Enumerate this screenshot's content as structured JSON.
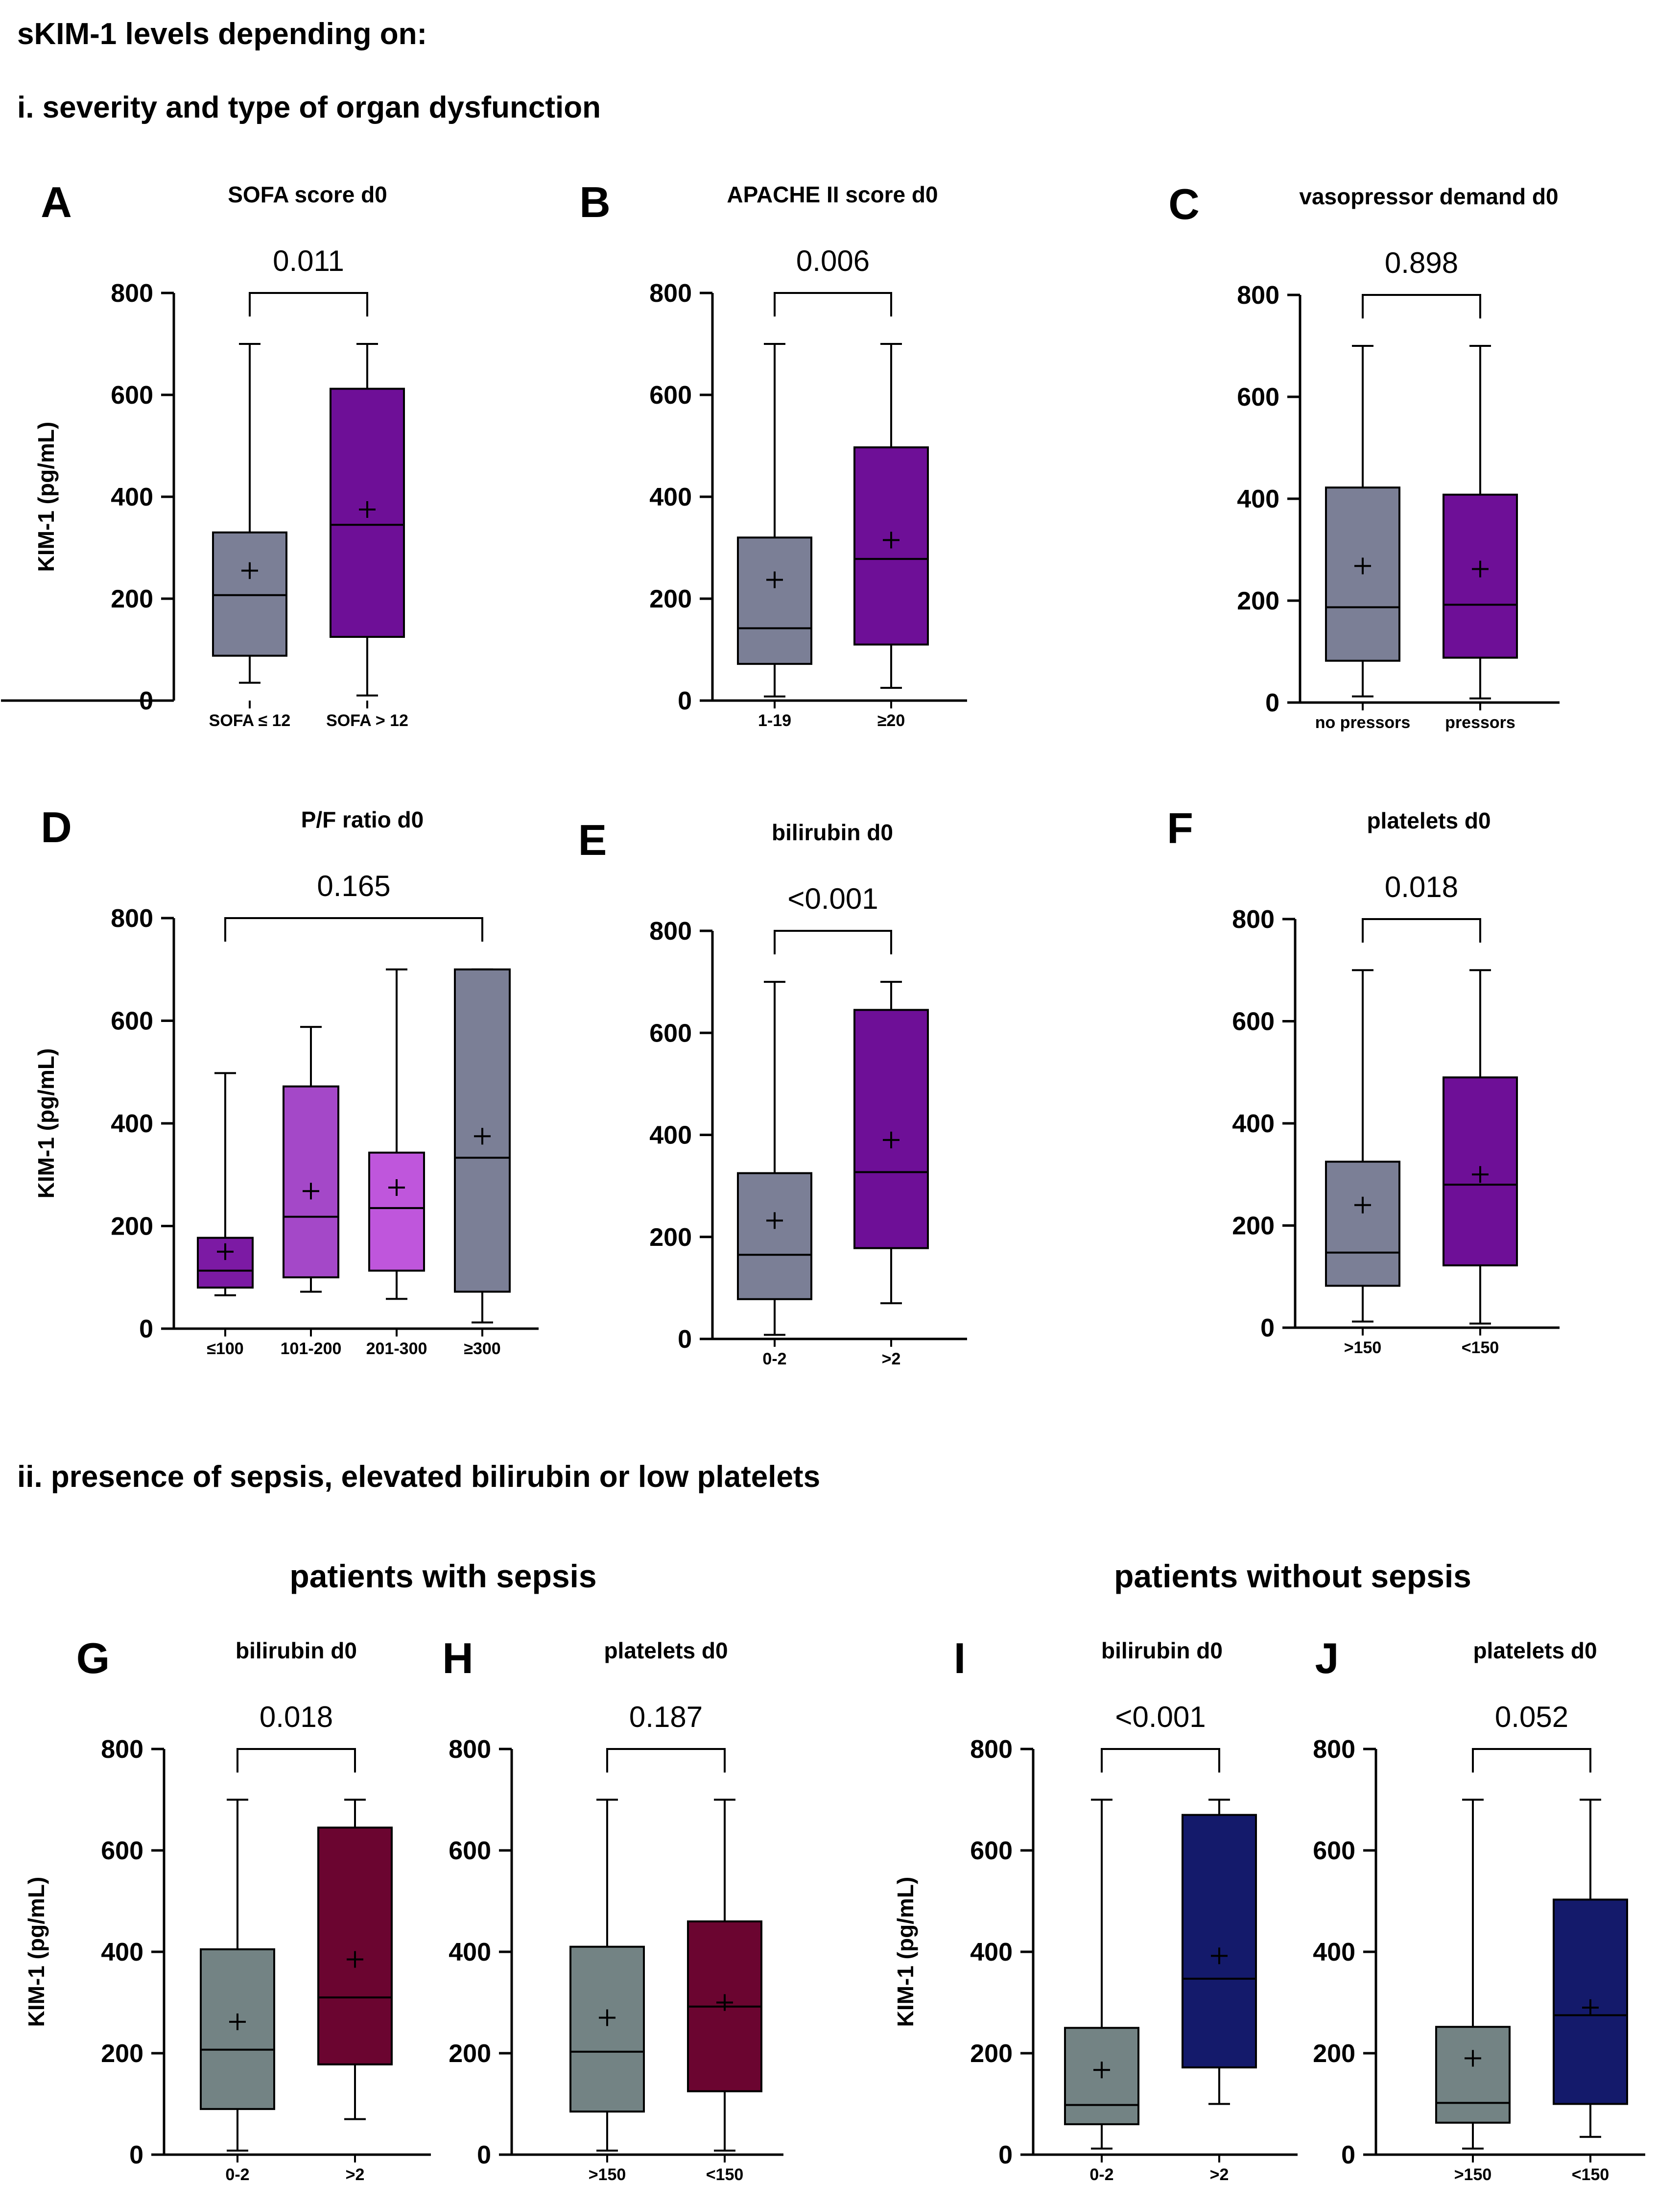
{
  "figure": {
    "title": "sKIM-1 levels depending on:",
    "section_i": "i. severity and type of organ dysfunction",
    "section_ii": "ii. presence of sepsis, elevated bilirubin or low platelets",
    "group_sepsis": "patients with sepsis",
    "group_no_sepsis": "patients without sepsis"
  },
  "colors": {
    "gray_blue": "#7b7f96",
    "purple": "#6e0f97",
    "purple_dark": "#7c1aa4",
    "purple_mid": "#a448c8",
    "purple_light": "#bf56dc",
    "gray_green": "#738384",
    "maroon": "#6b0530",
    "navy": "#141a6b"
  },
  "chart_data": [
    {
      "id": "A",
      "type": "box",
      "title": "SOFA score d0",
      "ylabel": "KIM-1 (pg/mL)",
      "ylim": [
        0,
        800
      ],
      "yticks": [
        0,
        200,
        400,
        600,
        800
      ],
      "pvalue": "0.011",
      "bracket": [
        0,
        1
      ],
      "groups": [
        {
          "label": "SOFA ≤ 12",
          "min": 35,
          "q1": 88,
          "median": 207,
          "q3": 330,
          "max": 700,
          "mean": 255,
          "color": "#7b7f96"
        },
        {
          "label": "SOFA > 12",
          "min": 10,
          "q1": 125,
          "median": 345,
          "q3": 612,
          "max": 700,
          "mean": 375,
          "color": "#6e0f97"
        }
      ]
    },
    {
      "id": "B",
      "type": "box",
      "title": "APACHE II score d0",
      "ylabel": "",
      "ylim": [
        0,
        800
      ],
      "yticks": [
        0,
        200,
        400,
        600,
        800
      ],
      "pvalue": "0.006",
      "bracket": [
        0,
        1
      ],
      "groups": [
        {
          "label": "1-19",
          "min": 8,
          "q1": 72,
          "median": 142,
          "q3": 320,
          "max": 700,
          "mean": 237,
          "color": "#7b7f96"
        },
        {
          "label": "≥20",
          "min": 25,
          "q1": 110,
          "median": 278,
          "q3": 497,
          "max": 700,
          "mean": 315,
          "color": "#6e0f97"
        }
      ]
    },
    {
      "id": "C",
      "type": "box",
      "title": "vasopressor demand d0",
      "ylabel": "",
      "ylim": [
        0,
        800
      ],
      "yticks": [
        0,
        200,
        400,
        600,
        800
      ],
      "pvalue": "0.898",
      "bracket": [
        0,
        1
      ],
      "groups": [
        {
          "label": "no pressors",
          "min": 12,
          "q1": 82,
          "median": 187,
          "q3": 422,
          "max": 700,
          "mean": 268,
          "color": "#7b7f96"
        },
        {
          "label": "pressors",
          "min": 8,
          "q1": 88,
          "median": 192,
          "q3": 408,
          "max": 700,
          "mean": 262,
          "color": "#6e0f97"
        }
      ]
    },
    {
      "id": "D",
      "type": "box",
      "title": "P/F ratio d0",
      "ylabel": "KIM-1 (pg/mL)",
      "ylim": [
        0,
        800
      ],
      "yticks": [
        0,
        200,
        400,
        600,
        800
      ],
      "pvalue": "0.165",
      "bracket": [
        0,
        3
      ],
      "groups": [
        {
          "label": "≤100",
          "min": 65,
          "q1": 80,
          "median": 113,
          "q3": 177,
          "max": 498,
          "mean": 150,
          "color": "#7c1aa4"
        },
        {
          "label": "101-200",
          "min": 72,
          "q1": 100,
          "median": 218,
          "q3": 472,
          "max": 588,
          "mean": 268,
          "color": "#a448c8"
        },
        {
          "label": "201-300",
          "min": 58,
          "q1": 113,
          "median": 235,
          "q3": 343,
          "max": 700,
          "mean": 275,
          "color": "#bf56dc"
        },
        {
          "label": "≥300",
          "min": 12,
          "q1": 72,
          "median": 333,
          "q3": 700,
          "max": 700,
          "mean": 375,
          "color": "#7b7f96"
        }
      ]
    },
    {
      "id": "E",
      "type": "box",
      "title": "bilirubin d0",
      "ylabel": "",
      "ylim": [
        0,
        800
      ],
      "yticks": [
        0,
        200,
        400,
        600,
        800
      ],
      "pvalue": "<0.001",
      "bracket": [
        0,
        1
      ],
      "groups": [
        {
          "label": "0-2",
          "min": 8,
          "q1": 78,
          "median": 165,
          "q3": 325,
          "max": 700,
          "mean": 232,
          "color": "#7b7f96"
        },
        {
          "label": ">2",
          "min": 70,
          "q1": 178,
          "median": 327,
          "q3": 645,
          "max": 700,
          "mean": 390,
          "color": "#6e0f97"
        }
      ]
    },
    {
      "id": "F",
      "type": "box",
      "title": "platelets d0",
      "ylabel": "",
      "ylim": [
        0,
        800
      ],
      "yticks": [
        0,
        200,
        400,
        600,
        800
      ],
      "pvalue": "0.018",
      "bracket": [
        0,
        1
      ],
      "groups": [
        {
          "label": ">150",
          "min": 12,
          "q1": 82,
          "median": 147,
          "q3": 325,
          "max": 700,
          "mean": 240,
          "color": "#7b7f96"
        },
        {
          "label": "<150",
          "min": 8,
          "q1": 122,
          "median": 280,
          "q3": 490,
          "max": 700,
          "mean": 300,
          "color": "#6e0f97"
        }
      ]
    },
    {
      "id": "G",
      "type": "box",
      "title": "bilirubin d0",
      "ylabel": "KIM-1 (pg/mL)",
      "ylim": [
        0,
        800
      ],
      "yticks": [
        0,
        200,
        400,
        600,
        800
      ],
      "pvalue": "0.018",
      "bracket": [
        0,
        1
      ],
      "groups": [
        {
          "label": "0-2",
          "min": 8,
          "q1": 90,
          "median": 207,
          "q3": 405,
          "max": 700,
          "mean": 262,
          "color": "#738384"
        },
        {
          "label": ">2",
          "min": 70,
          "q1": 178,
          "median": 310,
          "q3": 645,
          "max": 700,
          "mean": 385,
          "color": "#6b0530"
        }
      ]
    },
    {
      "id": "H",
      "type": "box",
      "title": "platelets d0",
      "ylabel": "",
      "ylim": [
        0,
        800
      ],
      "yticks": [
        0,
        200,
        400,
        600,
        800
      ],
      "pvalue": "0.187",
      "bracket": [
        0,
        1
      ],
      "groups": [
        {
          "label": ">150",
          "min": 8,
          "q1": 85,
          "median": 203,
          "q3": 410,
          "max": 700,
          "mean": 270,
          "color": "#738384"
        },
        {
          "label": "<150",
          "min": 8,
          "q1": 125,
          "median": 292,
          "q3": 460,
          "max": 700,
          "mean": 300,
          "color": "#6b0530"
        }
      ]
    },
    {
      "id": "I",
      "type": "box",
      "title": "bilirubin d0",
      "ylabel": "KIM-1 (pg/mL)",
      "ylim": [
        0,
        800
      ],
      "yticks": [
        0,
        200,
        400,
        600,
        800
      ],
      "pvalue": "<0.001",
      "bracket": [
        0,
        1
      ],
      "groups": [
        {
          "label": "0-2",
          "min": 12,
          "q1": 60,
          "median": 98,
          "q3": 250,
          "max": 700,
          "mean": 167,
          "color": "#738384"
        },
        {
          "label": ">2",
          "min": 100,
          "q1": 172,
          "median": 347,
          "q3": 670,
          "max": 700,
          "mean": 392,
          "color": "#141a6b"
        }
      ]
    },
    {
      "id": "J",
      "type": "box",
      "title": "platelets d0",
      "ylabel": "",
      "ylim": [
        0,
        800
      ],
      "yticks": [
        0,
        200,
        400,
        600,
        800
      ],
      "pvalue": "0.052",
      "bracket": [
        0,
        1
      ],
      "groups": [
        {
          "label": ">150",
          "min": 12,
          "q1": 63,
          "median": 102,
          "q3": 252,
          "max": 700,
          "mean": 190,
          "color": "#738384"
        },
        {
          "label": "<150",
          "min": 35,
          "q1": 100,
          "median": 275,
          "q3": 503,
          "max": 700,
          "mean": 290,
          "color": "#141a6b"
        }
      ]
    }
  ]
}
